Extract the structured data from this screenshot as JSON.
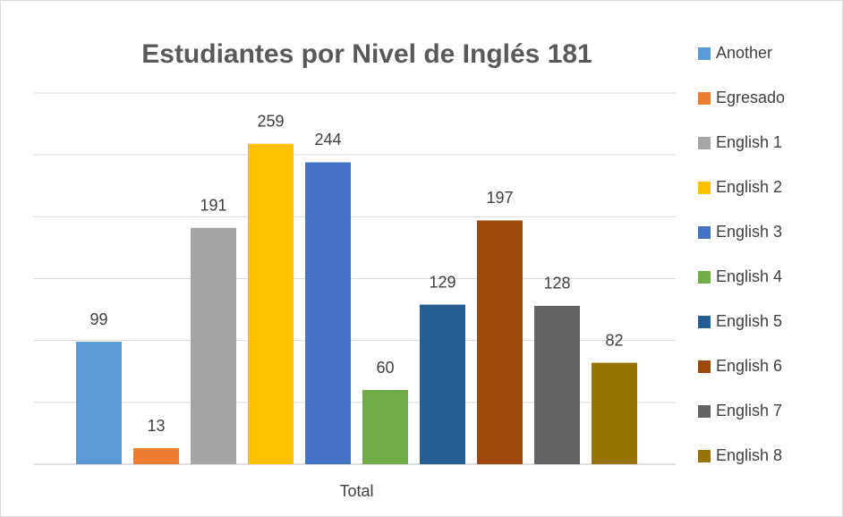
{
  "chart_data": {
    "type": "bar",
    "title": "Estudiantes por Nivel de Inglés 181",
    "categories": [
      "Total"
    ],
    "series": [
      {
        "name": "Another",
        "color": "#5b9bd5",
        "values": [
          99
        ]
      },
      {
        "name": "Egresado",
        "color": "#ed7d31",
        "values": [
          13
        ]
      },
      {
        "name": "English 1",
        "color": "#a5a5a5",
        "values": [
          191
        ]
      },
      {
        "name": "English 2",
        "color": "#ffc000",
        "values": [
          259
        ]
      },
      {
        "name": "English 3",
        "color": "#4472c4",
        "values": [
          244
        ]
      },
      {
        "name": "English 4",
        "color": "#70ad47",
        "values": [
          60
        ]
      },
      {
        "name": "English 5",
        "color": "#255e91",
        "values": [
          129
        ]
      },
      {
        "name": "English 6",
        "color": "#9e480e",
        "values": [
          197
        ]
      },
      {
        "name": "English 7",
        "color": "#636363",
        "values": [
          128
        ]
      },
      {
        "name": "English 8",
        "color": "#997300",
        "values": [
          82
        ]
      }
    ],
    "ylim": [
      0,
      300
    ],
    "yticks": [
      0,
      50,
      100,
      150,
      200,
      250,
      300
    ],
    "grid": true,
    "legend": "right"
  }
}
